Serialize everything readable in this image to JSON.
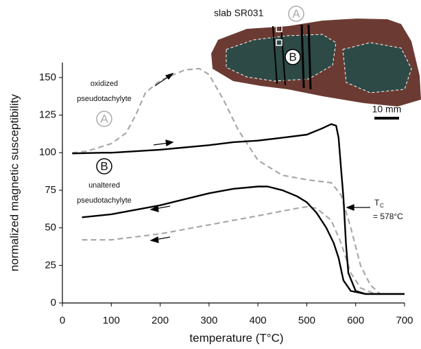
{
  "chart_data": {
    "type": "line",
    "xlabel": "temperature (T°C)",
    "ylabel": "normalized magnetic susceptibility",
    "xlim": [
      0,
      700
    ],
    "ylim": [
      0,
      160
    ],
    "xticks": [
      0,
      100,
      200,
      300,
      400,
      500,
      600,
      700
    ],
    "yticks": [
      0,
      25,
      50,
      75,
      100,
      125,
      150
    ],
    "series": [
      {
        "color": "#a8a8a8",
        "dash": true,
        "x": [
          20,
          50,
          100,
          130,
          150,
          170,
          200,
          250,
          280,
          300,
          330,
          360,
          400,
          450,
          500,
          550,
          570,
          590,
          610,
          630,
          650,
          700
        ],
        "values": [
          100,
          101,
          106,
          113,
          125,
          140,
          148,
          155,
          156,
          152,
          135,
          115,
          95,
          85,
          82,
          80,
          72,
          50,
          25,
          12,
          6,
          6
        ]
      },
      {
        "color": "#a8a8a8",
        "dash": true,
        "x": [
          40,
          100,
          200,
          300,
          400,
          480,
          500,
          520,
          550,
          570,
          590,
          610,
          640,
          700
        ],
        "values": [
          42,
          42,
          46,
          52,
          58,
          63,
          64,
          63,
          55,
          40,
          20,
          10,
          6,
          6
        ]
      },
      {
        "color": "#000000",
        "dash": false,
        "x": [
          20,
          80,
          100,
          200,
          300,
          350,
          400,
          450,
          500,
          530,
          550,
          560,
          565,
          570,
          575,
          580,
          585,
          600,
          620,
          700
        ],
        "values": [
          99.5,
          100,
          100,
          102,
          105,
          107,
          108,
          110,
          112,
          116,
          119,
          118,
          110,
          90,
          70,
          40,
          20,
          8,
          6,
          6
        ]
      },
      {
        "color": "#000000",
        "dash": false,
        "x": [
          40,
          100,
          200,
          300,
          350,
          400,
          420,
          450,
          480,
          500,
          520,
          540,
          555,
          565,
          575,
          590,
          620,
          700
        ],
        "values": [
          57,
          59,
          65,
          73,
          76,
          77.5,
          77.5,
          75,
          71,
          67,
          60,
          50,
          40,
          30,
          15,
          8,
          6,
          6
        ]
      }
    ],
    "annotations": {
      "a_line1": "oxidized",
      "a_line2": "pseudotachylyte",
      "a_letter": "A",
      "b_letter": "B",
      "b_line1": "unaltered",
      "b_line2": "pseudotachylyte",
      "tc_main": "T",
      "tc_sub": "C",
      "tc_value": "= 578°C"
    },
    "inset": {
      "title": "slab SR031",
      "a_letter": "A",
      "b_letter": "B",
      "scale": "10 mm"
    }
  }
}
